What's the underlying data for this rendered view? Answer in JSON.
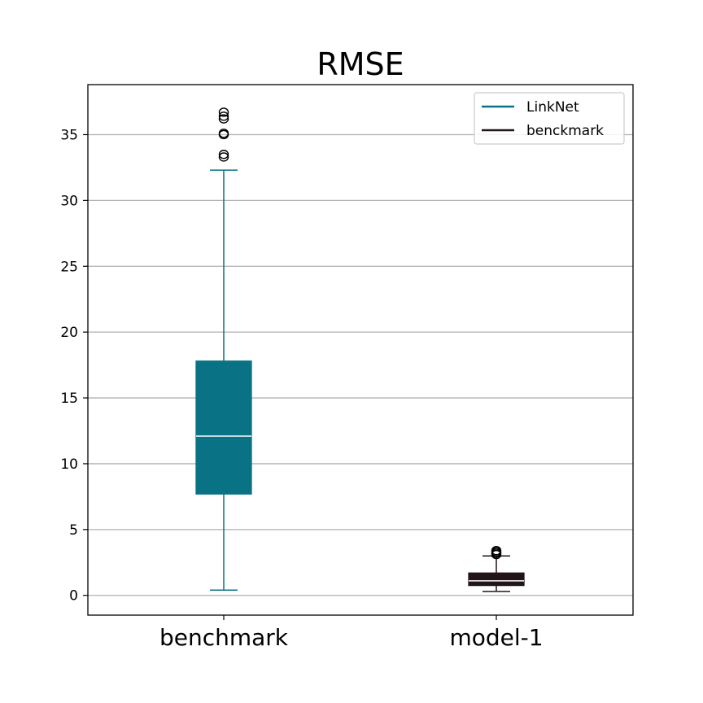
{
  "chart_data": {
    "type": "box",
    "title": "RMSE",
    "xlabel": "",
    "ylabel": "",
    "categories": [
      "benchmark",
      "model-1"
    ],
    "ylim": [
      -1.5,
      38.8
    ],
    "yticks": [
      0,
      5,
      10,
      15,
      20,
      25,
      30,
      35
    ],
    "grid": "horizontal",
    "legend_position": "top-right",
    "legend": [
      {
        "label": "LinkNet",
        "color": "#0a7285"
      },
      {
        "label": "benckmark",
        "color": "#231419"
      }
    ],
    "boxes": [
      {
        "category": "benchmark",
        "color": "#0a7285",
        "median_color": "#ffffff",
        "whisker_low": 0.4,
        "q1": 7.7,
        "median": 12.1,
        "q3": 17.8,
        "whisker_high": 32.3,
        "outliers": [
          33.3,
          33.5,
          35.0,
          35.1,
          36.2,
          36.4,
          36.7
        ]
      },
      {
        "category": "model-1",
        "color": "#231419",
        "median_color": "#ffffff",
        "whisker_low": 0.3,
        "q1": 0.75,
        "median": 1.1,
        "q3": 1.7,
        "whisker_high": 3.0,
        "outliers": [
          3.1,
          3.2,
          3.3,
          3.4
        ]
      }
    ]
  }
}
